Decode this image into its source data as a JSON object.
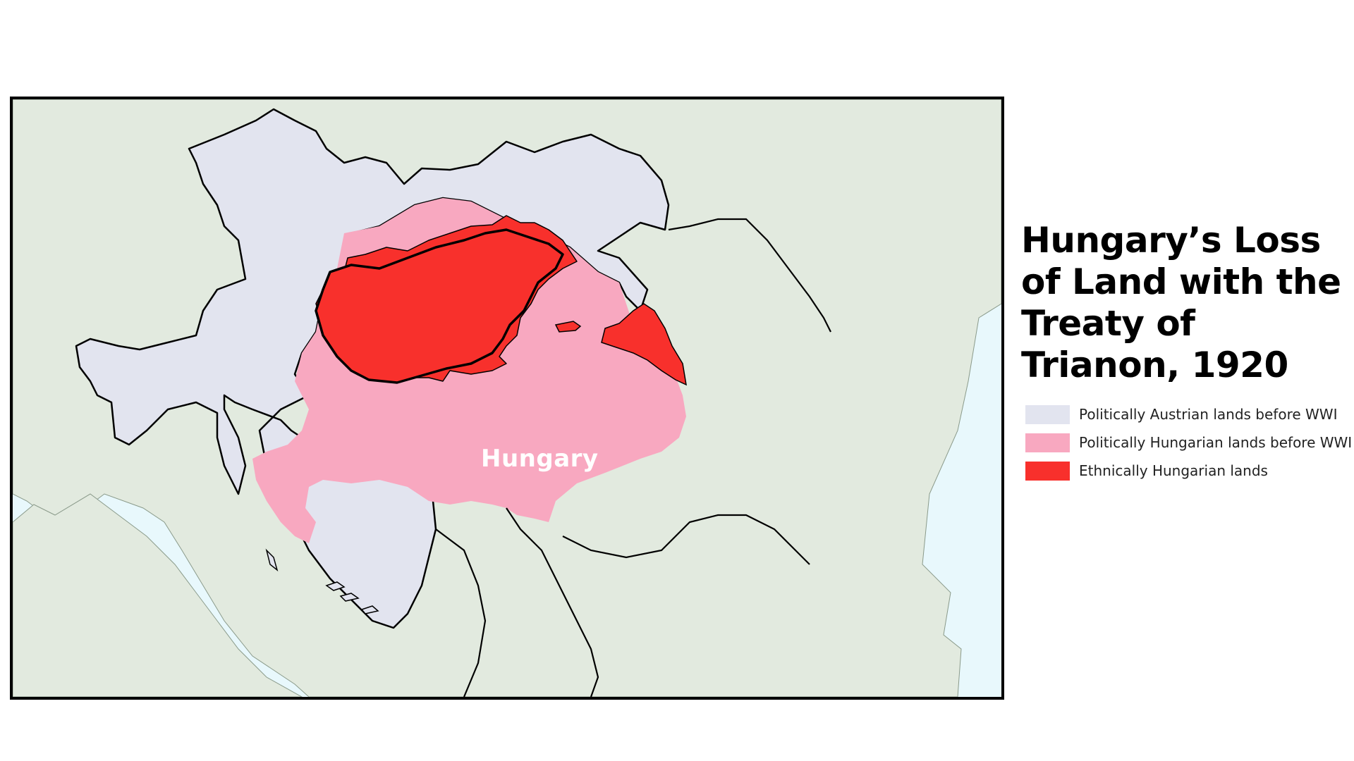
{
  "title": "Hungary’s Loss of Land with the Treaty of Trianon, 1920",
  "map": {
    "label": "Hungary",
    "colors": {
      "water": "#e8f8fc",
      "land": "#e2eadf",
      "austrian": "#e2e4ef",
      "hungarian": "#f8a8c0",
      "ethnic": "#f8302c",
      "border": "#000000"
    }
  },
  "legend": [
    {
      "label": "Politically Austrian lands before WWI",
      "color": "#e2e4ef"
    },
    {
      "label": "Politically Hungarian lands before WWI",
      "color": "#f8a8c0"
    },
    {
      "label": "Ethnically Hungarian lands",
      "color": "#f8302c"
    }
  ]
}
